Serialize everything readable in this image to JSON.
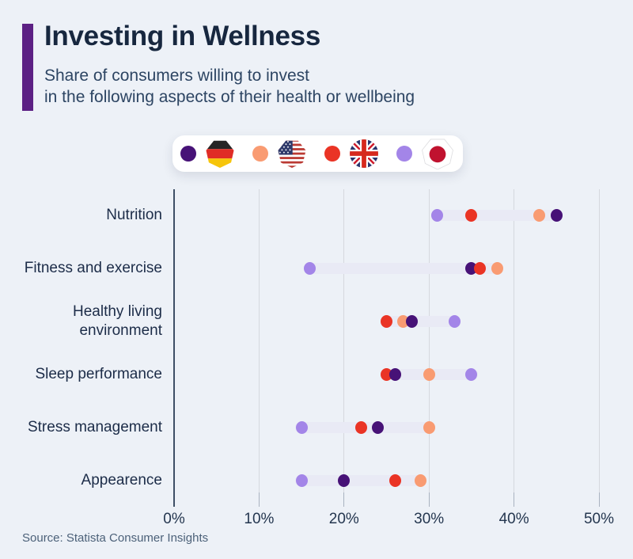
{
  "header": {
    "title": "Investing in Wellness",
    "subtitle_line1": "Share of consumers willing to invest",
    "subtitle_line2": "in the following aspects of their health or wellbeing",
    "accent_color": "#5c2084"
  },
  "legend": {
    "items": [
      {
        "country": "Germany",
        "code": "de",
        "icon": "flag-germany-icon",
        "color": "#471277"
      },
      {
        "country": "United States",
        "code": "us",
        "icon": "flag-usa-icon",
        "color": "#f99b72"
      },
      {
        "country": "United Kingdom",
        "code": "uk",
        "icon": "flag-uk-icon",
        "color": "#ea3425"
      },
      {
        "country": "Japan",
        "code": "jp",
        "icon": "flag-japan-icon",
        "color": "#a385e8"
      }
    ]
  },
  "chart_data": {
    "type": "scatter",
    "subtype": "dot-range-plot",
    "categories": [
      "Nutrition",
      "Fitness and exercise",
      "Healthy living environment",
      "Sleep performance",
      "Stress management",
      "Appearence"
    ],
    "series": [
      {
        "name": "Germany",
        "color": "#471277",
        "values": [
          45,
          35,
          28,
          26,
          24,
          20
        ]
      },
      {
        "name": "United States",
        "color": "#f99b72",
        "values": [
          43,
          38,
          27,
          30,
          30,
          29
        ]
      },
      {
        "name": "United Kingdom",
        "color": "#ea3425",
        "values": [
          35,
          36,
          25,
          25,
          22,
          26
        ]
      },
      {
        "name": "Japan",
        "color": "#a385e8",
        "values": [
          31,
          16,
          33,
          35,
          15,
          15
        ]
      }
    ],
    "xlim": [
      0,
      50
    ],
    "x_ticks": [
      "0%",
      "10%",
      "20%",
      "30%",
      "40%",
      "50%"
    ],
    "grid": true,
    "legend_position": "top",
    "range_band_color": "#e9eaf5",
    "unit": "%"
  },
  "footer": {
    "source": "Source: Statista Consumer Insights"
  }
}
